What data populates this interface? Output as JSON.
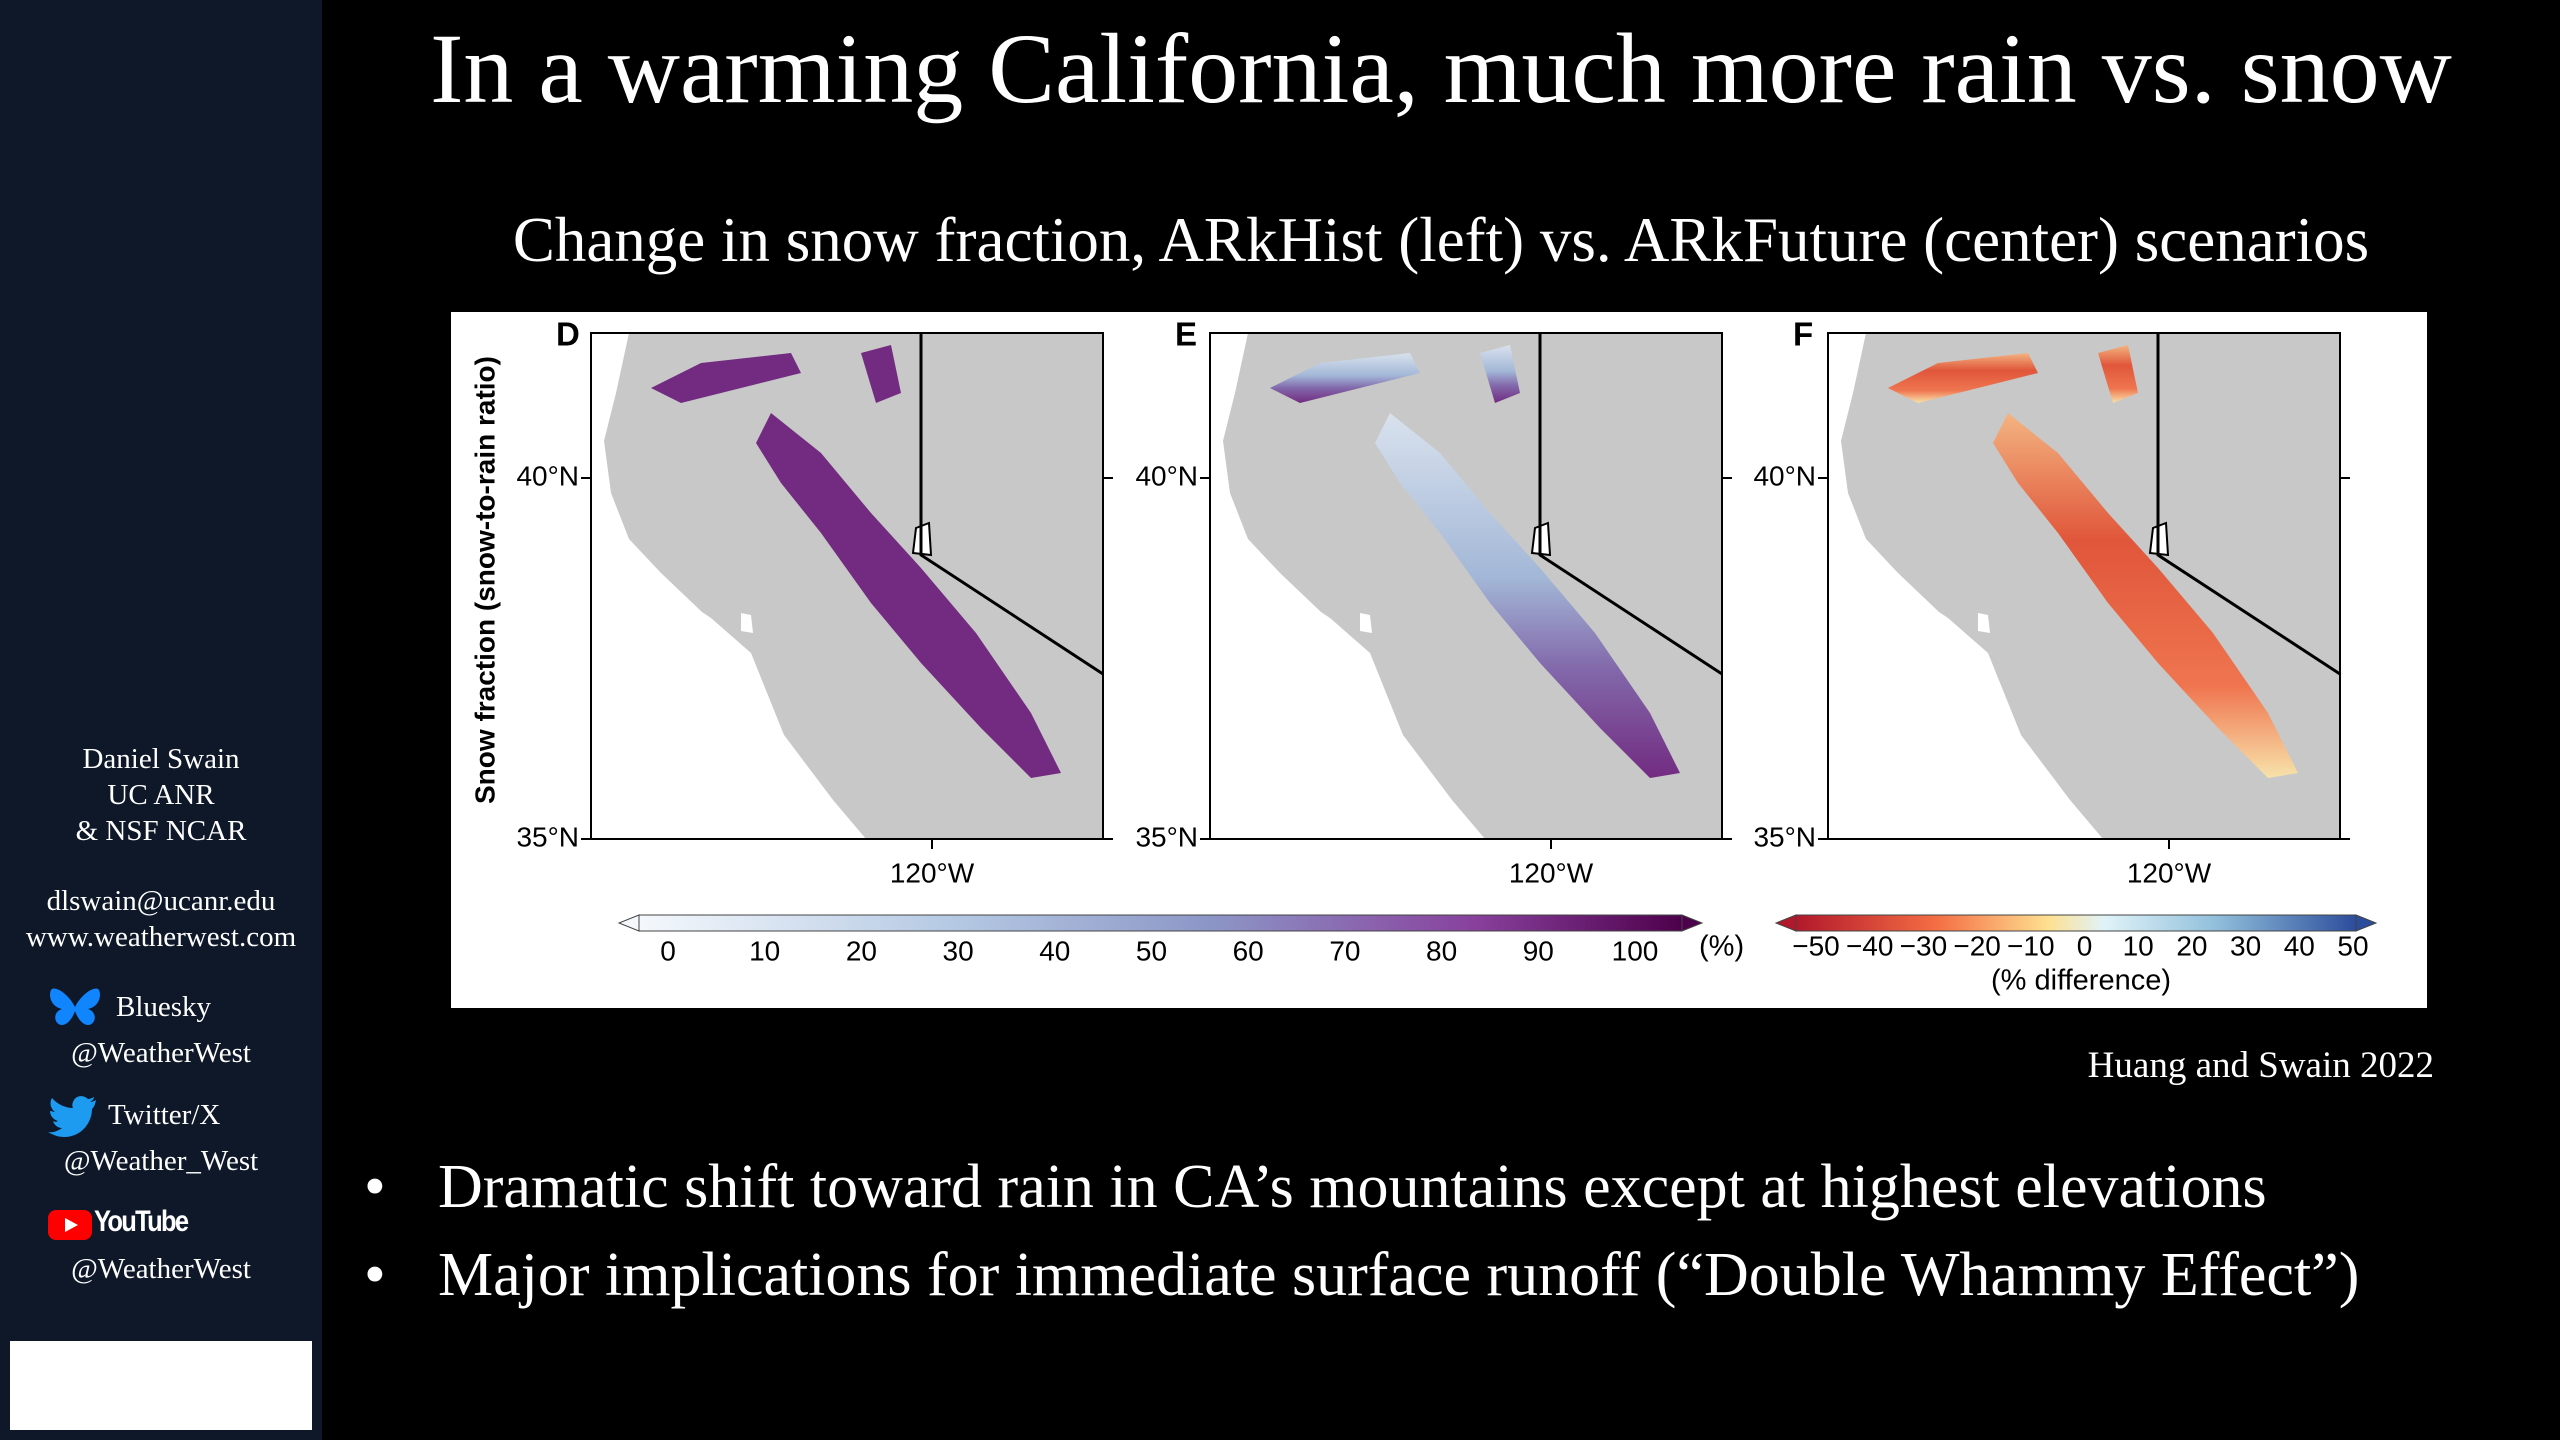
{
  "header": {
    "title": "In a warming California, much more rain vs. snow",
    "subtitle": "Change in snow fraction, ARkHist (left) vs. ARkFuture (center) scenarios"
  },
  "sidebar": {
    "author": [
      "Daniel Swain",
      "UC ANR",
      "& NSF NCAR"
    ],
    "contact": [
      "dlswain@ucanr.edu",
      "www.weatherwest.com"
    ],
    "social": [
      {
        "platform": "Bluesky",
        "handle": "@WeatherWest"
      },
      {
        "platform": "Twitter/X",
        "handle": "@Weather_West"
      },
      {
        "platform": "YouTube",
        "handle": "@WeatherWest"
      }
    ]
  },
  "figure": {
    "y_axis_label": "Snow fraction (snow-to-rain ratio)",
    "panels": [
      {
        "label": "D",
        "lat_labels": [
          "40°N",
          "35°N"
        ],
        "lon_label": "120°W"
      },
      {
        "label": "E",
        "lat_labels": [
          "40°N",
          "35°N"
        ],
        "lon_label": "120°W"
      },
      {
        "label": "F",
        "lat_labels": [
          "40°N",
          "35°N"
        ],
        "lon_label": "120°W"
      }
    ],
    "colorbar_snow": {
      "ticks": [
        "0",
        "10",
        "20",
        "30",
        "40",
        "50",
        "60",
        "70",
        "80",
        "90",
        "100"
      ],
      "unit": "(%)"
    },
    "colorbar_diff": {
      "ticks": [
        "−50",
        "−40",
        "−30",
        "−20",
        "−10",
        "0",
        "10",
        "20",
        "30",
        "40",
        "50"
      ],
      "label": "(% difference)"
    }
  },
  "citation": "Huang and Swain 2022",
  "bullets": [
    "Dramatic shift toward rain in CA’s mountains except at highest elevations",
    "Major implications for immediate surface runoff (“Double Whammy Effect”)"
  ]
}
